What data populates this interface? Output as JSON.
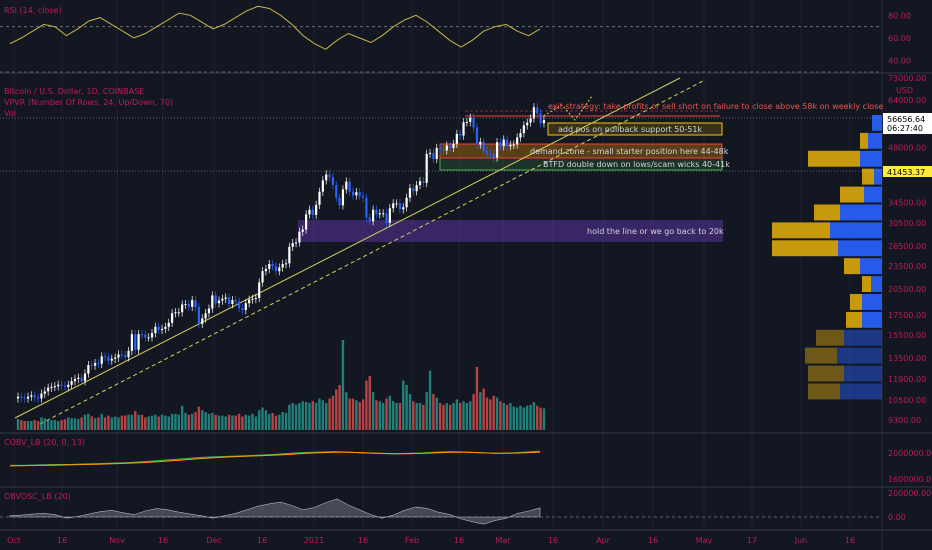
{
  "colors": {
    "background": "#131722",
    "grid": "#1e222d",
    "axis_text": "#d1d4dc",
    "pane_title": "#c2185b",
    "rsi_line": "#c9b54a",
    "rsi_level": "#787b86",
    "up_candle": "#ffffff",
    "down_candle": "#2962ff",
    "vol_up": "#26a69a",
    "vol_down": "#ef5350",
    "trendline": "#d7cf5c",
    "annotation_text": "#ef5350",
    "price_badge_text": "#000000",
    "ob_green": "#4caf50",
    "ob_red": "#f44336",
    "ob_yellow": "#ffc107",
    "obv_fill": "#787b86"
  },
  "panes": {
    "rsi_title": "RSI (14, close)",
    "main_title": "Bitcoin / U.S. Dollar, 1D, COINBASE",
    "vpvr_title": "VPVR (Number Of Rows, 24, Up/Down, 70)",
    "vol_title": "Vol",
    "cobv_title": "COBV_LB (20, 0, 13)",
    "obvosc_title": "OBVOSC_LB (20)",
    "price_unit": "USD"
  },
  "price_badges": {
    "last_price": "56656.64",
    "countdown": "06:27:40",
    "support_price": "41453.37"
  },
  "annotations": {
    "exit": "exit strategy: take profits or sell short on failure to close above 58k on weekly close",
    "add": "add pos on pullback support 50-51k",
    "demand": "demand zone - small starter position here 44-48k",
    "btfd": "BTFD double down on lows/scam wicks 40-41k",
    "hold": "hold the line or we go back to 20k"
  },
  "chart_data": [
    {
      "type": "line",
      "title": "RSI (14, close)",
      "y_ticks": [
        "80.00",
        "60.00",
        "40.00"
      ],
      "ylim": [
        30,
        90
      ],
      "levels": [
        70,
        30
      ],
      "values": [
        55,
        60,
        66,
        72,
        70,
        62,
        68,
        75,
        78,
        72,
        66,
        60,
        64,
        70,
        76,
        82,
        80,
        74,
        68,
        72,
        78,
        84,
        88,
        86,
        80,
        72,
        62,
        55,
        50,
        58,
        64,
        60,
        56,
        62,
        70,
        76,
        80,
        74,
        66,
        58,
        52,
        58,
        66,
        70,
        72,
        66,
        62,
        68
      ]
    },
    {
      "type": "candlestick",
      "title": "Bitcoin / U.S. Dollar, 1D, COINBASE",
      "y_axis_scale": "log",
      "y_ticks": [
        "73000.00",
        "64000.00",
        "56000.00",
        "48000.00",
        "41453.37",
        "34500.00",
        "30500.00",
        "26500.00",
        "23500.00",
        "20500.00",
        "17500.00",
        "15500.00",
        "13500.00",
        "11900.00",
        "10500.00",
        "9300.00"
      ],
      "x_ticks": [
        "Oct",
        "16",
        "Nov",
        "16",
        "Dec",
        "16",
        "2021",
        "16",
        "Feb",
        "16",
        "Mar",
        "16",
        "Apr",
        "16",
        "May",
        "17",
        "Jun",
        "16"
      ],
      "start_date": "2020-10-01",
      "last_price": 56656.64,
      "closes": [
        10700,
        10650,
        10580,
        10700,
        10790,
        10650,
        10590,
        10900,
        11050,
        11300,
        11350,
        11400,
        11500,
        11430,
        11350,
        11500,
        11750,
        11910,
        12000,
        11750,
        12300,
        12950,
        12900,
        13100,
        13050,
        13650,
        13600,
        13300,
        13450,
        13550,
        13800,
        13750,
        13580,
        14100,
        15600,
        14200,
        15600,
        15550,
        15300,
        15300,
        15700,
        16300,
        16000,
        16100,
        16300,
        16700,
        17700,
        17800,
        17800,
        18650,
        18700,
        18400,
        19150,
        18350,
        16600,
        17150,
        17700,
        18200,
        19700,
        18800,
        19100,
        19300,
        19450,
        18700,
        19150,
        19000,
        18250,
        18050,
        18800,
        19200,
        19300,
        19400,
        21300,
        22800,
        23100,
        23800,
        23500,
        22800,
        23300,
        23800,
        23900,
        26400,
        27000,
        27100,
        28900,
        29300,
        32100,
        33000,
        32000,
        34000,
        36800,
        39400,
        40800,
        40200,
        38300,
        35500,
        33900,
        37300,
        39100,
        36800,
        36000,
        36700,
        35800,
        35500,
        31500,
        30800,
        33000,
        32100,
        32300,
        32300,
        30500,
        33300,
        34300,
        34300,
        33100,
        33500,
        35500,
        37600,
        36900,
        38300,
        39200,
        38800,
        46200,
        46500,
        44800,
        47900,
        47400,
        47200,
        48600,
        47900,
        49100,
        52100,
        51600,
        55900,
        56000,
        57500,
        54200,
        48900,
        49700,
        47000,
        46300,
        46200,
        45200,
        49600,
        48400,
        50400,
        48400,
        48800,
        48900,
        51000,
        52400,
        54900,
        55800,
        57200,
        61200,
        59000,
        55600,
        56656.64
      ]
    },
    {
      "type": "bar",
      "title": "Vol",
      "note": "daily volume, relative units (0-1)",
      "values": [
        0.12,
        0.11,
        0.1,
        0.1,
        0.1,
        0.11,
        0.1,
        0.14,
        0.13,
        0.12,
        0.11,
        0.11,
        0.1,
        0.11,
        0.12,
        0.14,
        0.13,
        0.13,
        0.12,
        0.14,
        0.17,
        0.18,
        0.15,
        0.13,
        0.14,
        0.18,
        0.14,
        0.16,
        0.14,
        0.15,
        0.14,
        0.16,
        0.16,
        0.17,
        0.17,
        0.21,
        0.17,
        0.17,
        0.14,
        0.15,
        0.16,
        0.17,
        0.15,
        0.17,
        0.16,
        0.15,
        0.18,
        0.18,
        0.17,
        0.27,
        0.19,
        0.17,
        0.18,
        0.2,
        0.26,
        0.22,
        0.2,
        0.18,
        0.19,
        0.17,
        0.16,
        0.16,
        0.15,
        0.17,
        0.16,
        0.16,
        0.18,
        0.15,
        0.17,
        0.16,
        0.18,
        0.15,
        0.22,
        0.25,
        0.22,
        0.18,
        0.19,
        0.16,
        0.17,
        0.2,
        0.19,
        0.28,
        0.3,
        0.28,
        0.3,
        0.32,
        0.31,
        0.3,
        0.32,
        0.3,
        0.35,
        0.33,
        0.3,
        0.35,
        0.38,
        0.45,
        0.5,
        1.0,
        0.42,
        0.35,
        0.35,
        0.33,
        0.31,
        0.34,
        0.55,
        0.6,
        0.42,
        0.33,
        0.32,
        0.3,
        0.35,
        0.38,
        0.32,
        0.3,
        0.3,
        0.55,
        0.5,
        0.4,
        0.32,
        0.3,
        0.3,
        0.28,
        0.42,
        0.66,
        0.4,
        0.36,
        0.3,
        0.28,
        0.3,
        0.28,
        0.3,
        0.34,
        0.3,
        0.32,
        0.3,
        0.32,
        0.4,
        0.7,
        0.42,
        0.46,
        0.36,
        0.34,
        0.38,
        0.36,
        0.32,
        0.3,
        0.28,
        0.3,
        0.26,
        0.25,
        0.27,
        0.25,
        0.27,
        0.28,
        0.31,
        0.27,
        0.25,
        0.24
      ]
    },
    {
      "type": "bar",
      "title": "VPVR (Number Of Rows, 24, Up/Down, 70)",
      "note": "volume profile rows from top to bottom; up = yellow part, down = blue part, relative units",
      "rows": [
        {
          "up": 0.0,
          "down": 0.1
        },
        {
          "up": 0.08,
          "down": 0.14
        },
        {
          "up": 0.52,
          "down": 0.22
        },
        {
          "up": 0.12,
          "down": 0.08
        },
        {
          "up": 0.24,
          "down": 0.18
        },
        {
          "up": 0.26,
          "down": 0.42
        },
        {
          "up": 0.58,
          "down": 0.52
        },
        {
          "up": 0.66,
          "down": 0.44
        },
        {
          "up": 0.16,
          "down": 0.22
        },
        {
          "up": 0.09,
          "down": 0.11
        },
        {
          "up": 0.12,
          "down": 0.2
        },
        {
          "up": 0.16,
          "down": 0.2
        },
        {
          "up": 0.28,
          "down": 0.38
        },
        {
          "up": 0.32,
          "down": 0.45
        },
        {
          "up": 0.36,
          "down": 0.38
        },
        {
          "up": 0.32,
          "down": 0.42
        }
      ]
    },
    {
      "type": "line",
      "title": "COBV_LB (20, 0, 13)",
      "y_ticks": [
        "2000000.00",
        "1600000.00"
      ],
      "series": [
        {
          "color": "#4caf50",
          "values": [
            0.2,
            0.2,
            0.22,
            0.24,
            0.24,
            0.26,
            0.28,
            0.3,
            0.32,
            0.36,
            0.4,
            0.45,
            0.5,
            0.55,
            0.58,
            0.6,
            0.62,
            0.65,
            0.68,
            0.72,
            0.76,
            0.78,
            0.8,
            0.78,
            0.74,
            0.72,
            0.7,
            0.72,
            0.74,
            0.78,
            0.8,
            0.78,
            0.75,
            0.72,
            0.74,
            0.78,
            0.82
          ]
        },
        {
          "color": "#ff9800",
          "values": [
            0.18,
            0.19,
            0.2,
            0.21,
            0.22,
            0.24,
            0.25,
            0.27,
            0.29,
            0.32,
            0.36,
            0.4,
            0.45,
            0.5,
            0.54,
            0.57,
            0.6,
            0.62,
            0.65,
            0.68,
            0.72,
            0.75,
            0.77,
            0.77,
            0.75,
            0.73,
            0.71,
            0.71,
            0.72,
            0.75,
            0.77,
            0.77,
            0.75,
            0.73,
            0.73,
            0.75,
            0.78
          ]
        }
      ]
    },
    {
      "type": "area",
      "title": "OBVOSC_LB (20)",
      "y_ticks": [
        "200000.00",
        "0.00"
      ],
      "values": [
        0.05,
        0.08,
        0.12,
        0.15,
        0.1,
        -0.05,
        0.02,
        0.12,
        0.22,
        0.28,
        0.18,
        0.1,
        0.25,
        0.35,
        0.3,
        0.2,
        0.12,
        0.05,
        -0.05,
        0.05,
        0.15,
        0.3,
        0.45,
        0.55,
        0.62,
        0.48,
        0.3,
        0.4,
        0.6,
        0.75,
        0.5,
        0.3,
        0.1,
        -0.05,
        0.08,
        0.28,
        0.42,
        0.36,
        0.2,
        0.1,
        -0.08,
        -0.2,
        -0.3,
        -0.15,
        -0.05,
        0.15,
        0.25,
        0.38
      ]
    }
  ]
}
